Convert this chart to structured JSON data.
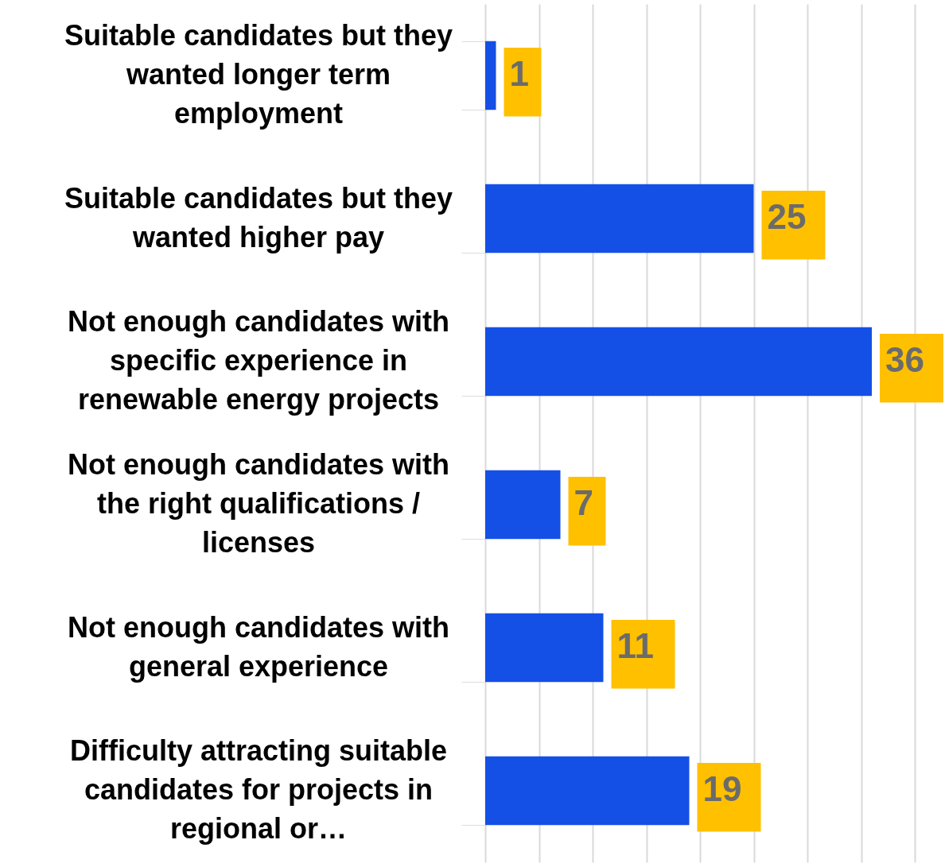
{
  "chart_data": {
    "type": "bar",
    "orientation": "horizontal",
    "categories": [
      "Suitable candidates but they wanted longer term employment",
      "Suitable candidates but they wanted higher pay",
      "Not enough candidates with specific experience in renewable energy projects",
      "Not enough candidates with the right qualifications / licenses",
      "Not enough candidates with general experience",
      "Difficulty attracting suitable candidates for projects in regional or…"
    ],
    "values": [
      1,
      25,
      36,
      7,
      11,
      19
    ],
    "color": "#1450e6",
    "xlim": [
      0,
      40
    ],
    "xticks": [
      {
        "value": 0,
        "label": null
      },
      {
        "value": 5,
        "label": null
      },
      {
        "value": 10,
        "label": null
      },
      {
        "value": 15,
        "label": null
      },
      {
        "value": 20,
        "label": null
      },
      {
        "value": 25,
        "label": null
      },
      {
        "value": 30,
        "label": null
      },
      {
        "value": 35,
        "label": null
      },
      {
        "value": 40,
        "label": null
      }
    ],
    "grid": "x",
    "data_labels": true
  }
}
